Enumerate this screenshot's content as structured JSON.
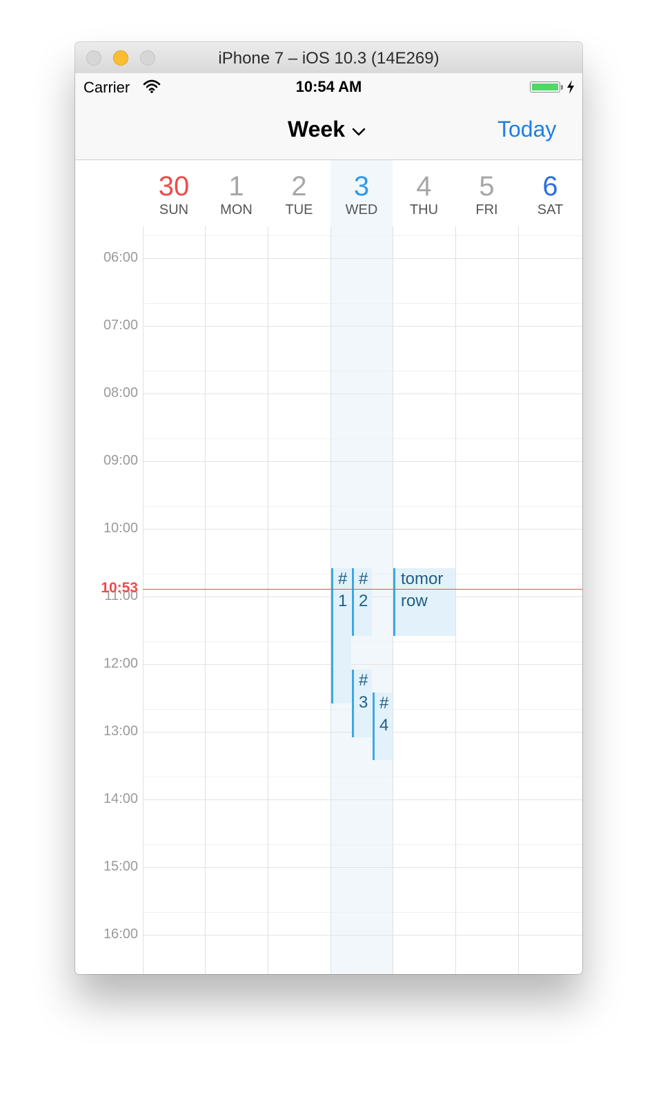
{
  "window": {
    "title": "iPhone 7 – iOS 10.3 (14E269)"
  },
  "status_bar": {
    "carrier": "Carrier",
    "time": "10:54 AM",
    "battery_color": "#4cd964"
  },
  "nav": {
    "title": "Week",
    "today_label": "Today",
    "accent": "#1e7fe3"
  },
  "days": [
    {
      "num": "30",
      "weekday": "SUN",
      "color": "#ef4b4b",
      "selected": false
    },
    {
      "num": "1",
      "weekday": "MON",
      "color": "#a6a6a6",
      "selected": false
    },
    {
      "num": "2",
      "weekday": "TUE",
      "color": "#a6a6a6",
      "selected": false
    },
    {
      "num": "3",
      "weekday": "WED",
      "color": "#2f9be4",
      "selected": true
    },
    {
      "num": "4",
      "weekday": "THU",
      "color": "#a6a6a6",
      "selected": false
    },
    {
      "num": "5",
      "weekday": "FRI",
      "color": "#a6a6a6",
      "selected": false
    },
    {
      "num": "6",
      "weekday": "SAT",
      "color": "#2d6fe0",
      "selected": false
    }
  ],
  "hours": [
    "06:00",
    "07:00",
    "08:00",
    "09:00",
    "10:00",
    "11:00",
    "12:00",
    "13:00",
    "14:00",
    "15:00",
    "16:00"
  ],
  "now": {
    "label": "10:53",
    "time": "10:53",
    "color": "#ef4b4b"
  },
  "events": [
    {
      "title": "#\n1",
      "day": 3,
      "start": "10:35",
      "end": "12:35"
    },
    {
      "title": "#\n2",
      "day": 3,
      "start": "10:35",
      "end": "11:35"
    },
    {
      "title": "#\n3",
      "day": 3,
      "start": "12:05",
      "end": "13:05"
    },
    {
      "title": "#\n4",
      "day": 3,
      "start": "12:25",
      "end": "13:25"
    },
    {
      "title": "tomor\nrow",
      "day": 4,
      "start": "10:35",
      "end": "11:35"
    }
  ]
}
